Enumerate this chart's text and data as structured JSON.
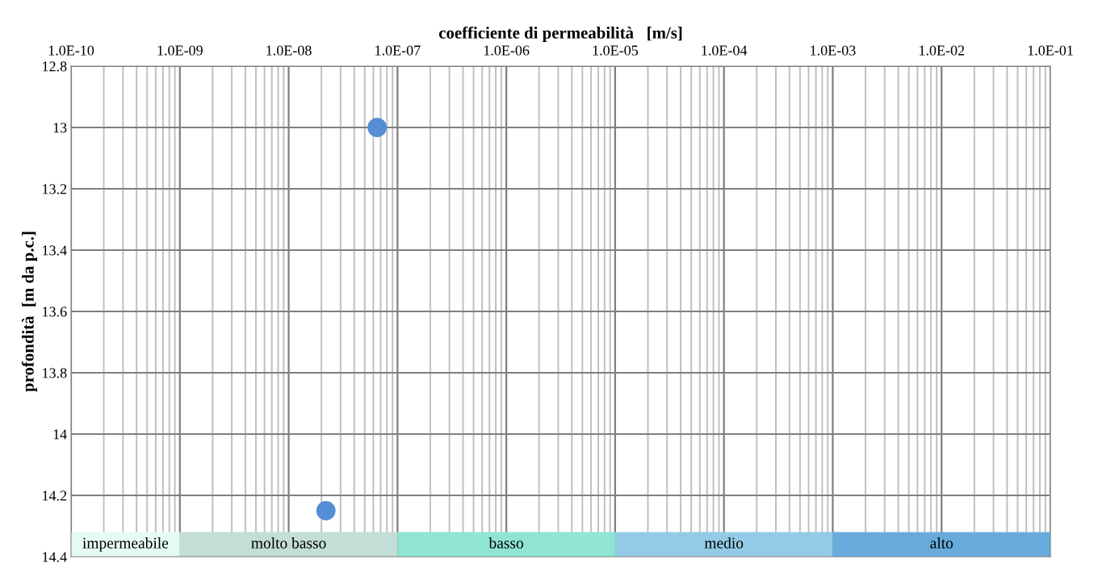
{
  "chart_data": {
    "type": "scatter",
    "xlabel": "coefficiente di permeabilità   [m/s]",
    "ylabel": "profondità  [m da p.c.]",
    "x": [
      6.5e-08,
      2.2e-08
    ],
    "values": [
      13,
      14.25
    ],
    "color": "#558ed5",
    "marker": "circle",
    "log": "x",
    "xlim": [
      1e-10,
      0.1
    ],
    "xticks": [
      {
        "value": 1e-10,
        "label": "1.0E-10"
      },
      {
        "value": 1e-09,
        "label": "1.0E-09"
      },
      {
        "value": 1e-08,
        "label": "1.0E-08"
      },
      {
        "value": 1e-07,
        "label": "1.0E-07"
      },
      {
        "value": 1e-06,
        "label": "1.0E-06"
      },
      {
        "value": 1e-05,
        "label": "1.0E-05"
      },
      {
        "value": 0.0001,
        "label": "1.0E-04"
      },
      {
        "value": 0.001,
        "label": "1.0E-03"
      },
      {
        "value": 0.01,
        "label": "1.0E-02"
      },
      {
        "value": 0.1,
        "label": "1.0E-01"
      }
    ],
    "ylim": [
      14.4,
      12.8
    ],
    "yticks": [
      12.8,
      13,
      13.2,
      13.4,
      13.6,
      13.8,
      14,
      14.2,
      14.4
    ],
    "grid": true,
    "bands": [
      {
        "axis": "x",
        "from": 1e-10,
        "to": 1e-09,
        "label": "impermeabile",
        "color": "#e6fbf3"
      },
      {
        "axis": "x",
        "from": 1e-09,
        "to": 1e-07,
        "label": "molto basso",
        "color": "#c3ded6"
      },
      {
        "axis": "x",
        "from": 1e-07,
        "to": 1e-05,
        "label": "basso",
        "color": "#8fe5d2"
      },
      {
        "axis": "x",
        "from": 1e-05,
        "to": 0.001,
        "label": "medio",
        "color": "#93cbe6"
      },
      {
        "axis": "x",
        "from": 0.001,
        "to": 0.1,
        "label": "alto",
        "color": "#67acdc"
      }
    ]
  }
}
